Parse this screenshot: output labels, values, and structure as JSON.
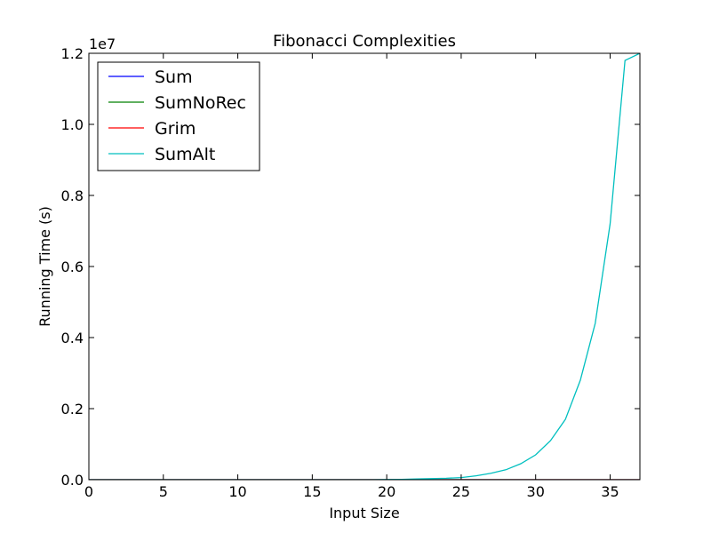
{
  "chart_data": {
    "type": "line",
    "title": "Fibonacci Complexities",
    "xlabel": "Input Size",
    "ylabel": "Running Time (s)",
    "y_offset_label": "1e7",
    "xlim": [
      0,
      37
    ],
    "ylim": [
      0,
      1.2
    ],
    "y_scale_multiplier": 10000000,
    "xticks": [
      0,
      5,
      10,
      15,
      20,
      25,
      30,
      35
    ],
    "xtick_labels": [
      "0",
      "5",
      "10",
      "15",
      "20",
      "25",
      "30",
      "35"
    ],
    "yticks": [
      0.0,
      0.2,
      0.4,
      0.6,
      0.8,
      1.0,
      1.2
    ],
    "ytick_labels": [
      "0.0",
      "0.2",
      "0.4",
      "0.6",
      "0.8",
      "1.0",
      "1.2"
    ],
    "grid": false,
    "legend_position": "top-left",
    "x": [
      0,
      1,
      2,
      3,
      4,
      5,
      6,
      7,
      8,
      9,
      10,
      11,
      12,
      13,
      14,
      15,
      16,
      17,
      18,
      19,
      20,
      21,
      22,
      23,
      24,
      25,
      26,
      27,
      28,
      29,
      30,
      31,
      32,
      33,
      34,
      35,
      36,
      37
    ],
    "series": [
      {
        "name": "Sum",
        "color": "#0000ff",
        "values": [
          0,
          0,
          0,
          0,
          0,
          0,
          0,
          0,
          0,
          0,
          0,
          0,
          0,
          0,
          0,
          0,
          0,
          0,
          0,
          0,
          0,
          0,
          0,
          0,
          0,
          0,
          0,
          0,
          0,
          0,
          0,
          0,
          0,
          0,
          0,
          0,
          0,
          0
        ]
      },
      {
        "name": "SumNoRec",
        "color": "#008000",
        "values": [
          0,
          0,
          0,
          0,
          0,
          0,
          0,
          0,
          0,
          0,
          0,
          0,
          0,
          0,
          0,
          0,
          0,
          0,
          0,
          0,
          0,
          0,
          0,
          0,
          0,
          0,
          0,
          0,
          0,
          0,
          0,
          0,
          0,
          0,
          0,
          0,
          0,
          0
        ]
      },
      {
        "name": "Grim",
        "color": "#ff0000",
        "values": [
          0,
          0,
          0,
          0,
          0,
          0,
          0,
          0,
          0,
          0,
          0,
          0,
          0,
          0,
          0,
          0,
          0,
          0,
          0,
          0,
          0,
          0,
          0,
          0,
          0,
          0,
          0,
          0,
          0,
          0,
          0,
          0,
          0,
          0,
          0,
          0,
          0,
          0
        ]
      },
      {
        "name": "SumAlt",
        "color": "#00bfbf",
        "values": [
          0,
          0,
          0,
          0,
          0,
          0,
          0,
          0,
          0,
          0,
          0,
          0,
          0,
          0,
          0,
          0,
          0,
          0,
          0,
          0,
          0.0005,
          0.001,
          0.002,
          0.003,
          0.004,
          0.006,
          0.011,
          0.018,
          0.028,
          0.045,
          0.07,
          0.11,
          0.17,
          0.28,
          0.44,
          0.72,
          1.18,
          1.2
        ]
      }
    ]
  }
}
